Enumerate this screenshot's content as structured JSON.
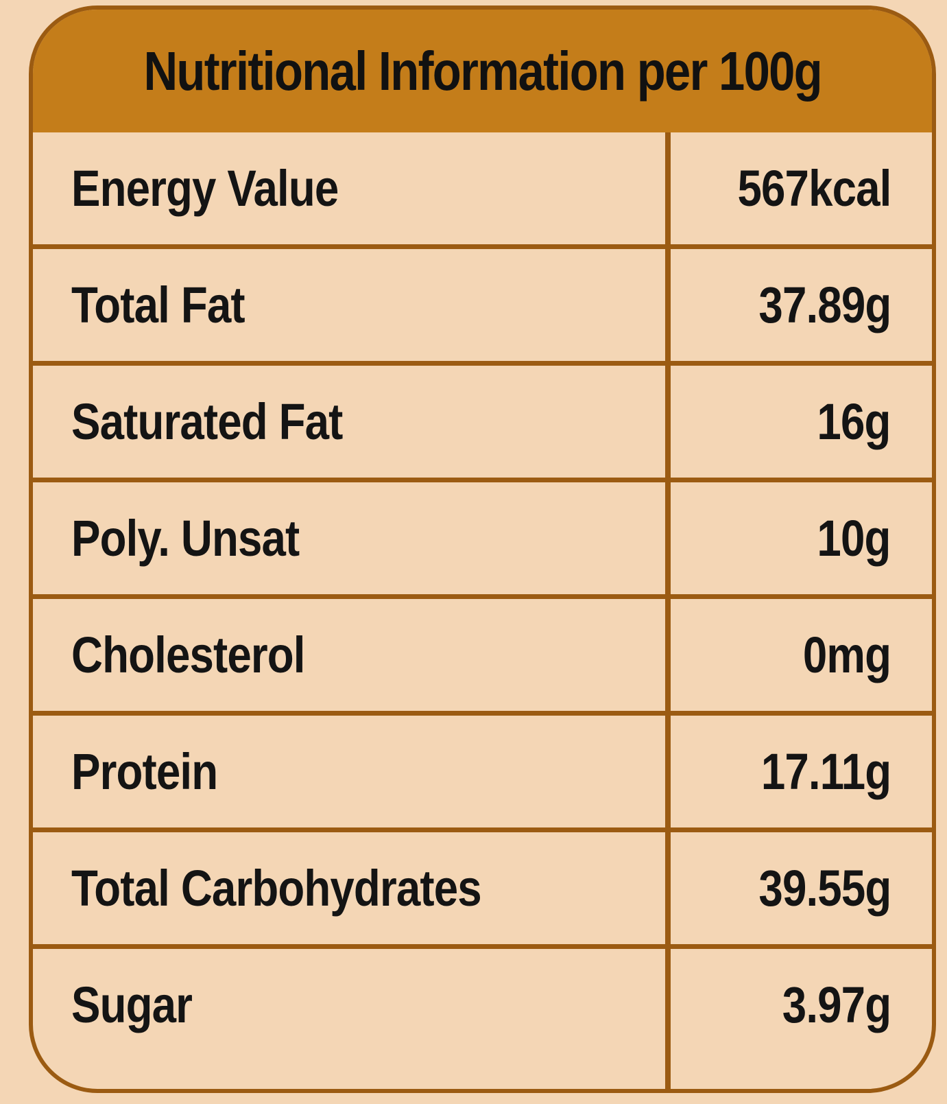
{
  "title": "Nutritional  Information per 100g",
  "rows": [
    {
      "name": "Energy Value",
      "value": "567kcal"
    },
    {
      "name": "Total Fat",
      "value": "37.89g"
    },
    {
      "name": "Saturated Fat",
      "value": "16g"
    },
    {
      "name": "Poly. Unsat",
      "value": "10g"
    },
    {
      "name": "Cholesterol",
      "value": "0mg"
    },
    {
      "name": "Protein",
      "value": "17.11g"
    },
    {
      "name": "Total Carbohydrates",
      "value": "39.55g"
    },
    {
      "name": "Sugar",
      "value": "3.97g"
    }
  ],
  "colors": {
    "background": "#f4d6b5",
    "header": "#c47d1a",
    "border": "#9b5b12",
    "text": "#141414"
  }
}
